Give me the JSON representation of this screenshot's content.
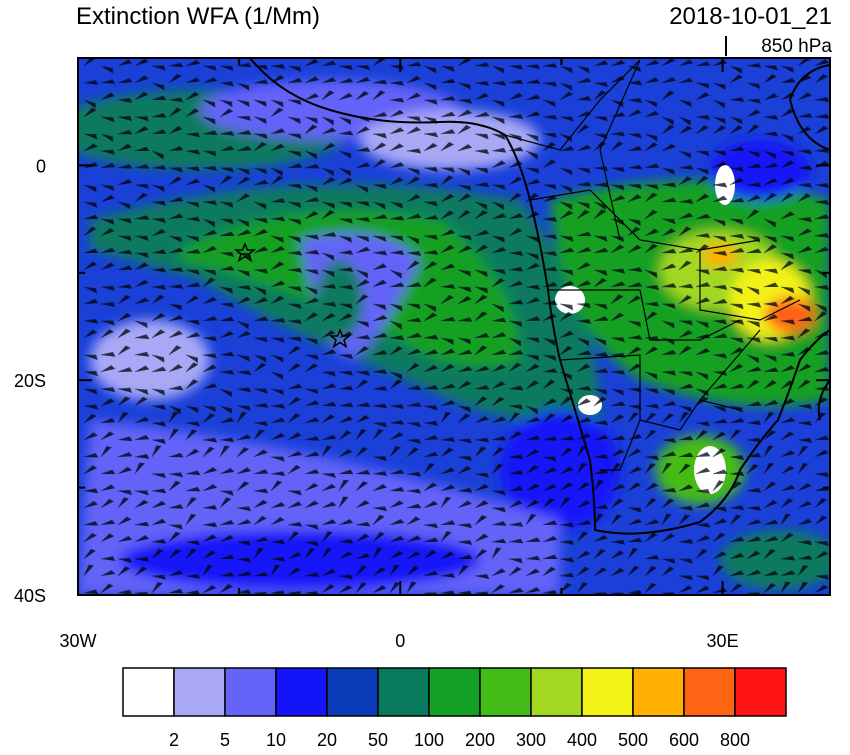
{
  "header": {
    "title": "Extinction WFA (1/Mm)",
    "time": "2018-10-01_21",
    "level": "850 hPa"
  },
  "map": {
    "lon_range": [
      -30,
      40
    ],
    "lat_range": [
      -40,
      10
    ],
    "lon_ticks": [
      {
        "value": -30,
        "label": "30W"
      },
      {
        "value": 0,
        "label": "0"
      },
      {
        "value": 30,
        "label": "30E"
      }
    ],
    "lat_ticks": [
      {
        "value": 0,
        "label": "0"
      },
      {
        "value": -20,
        "label": "20S"
      },
      {
        "value": -40,
        "label": "40S"
      }
    ]
  },
  "colorbar": {
    "colors": [
      "#ffffff",
      "#a8a8f5",
      "#6464f8",
      "#1414f8",
      "#0a3cb8",
      "#087a5e",
      "#14a024",
      "#44bc18",
      "#a2d820",
      "#f2f214",
      "#ffb000",
      "#ff6414",
      "#ff1414"
    ],
    "labels": [
      "2",
      "5",
      "10",
      "20",
      "50",
      "100",
      "200",
      "300",
      "400",
      "500",
      "600",
      "800"
    ]
  }
}
